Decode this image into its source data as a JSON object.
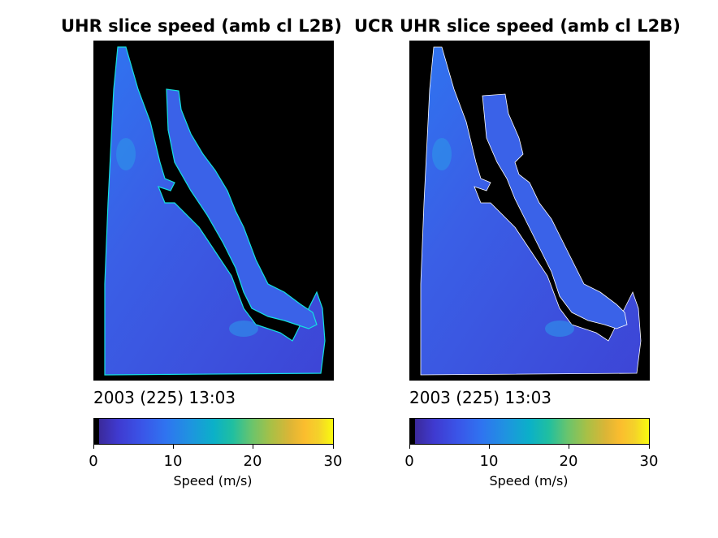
{
  "panels": [
    {
      "title": "UHR slice speed (amb cl L2B)",
      "timestamp": "2003 (225) 13:03"
    },
    {
      "title": "UCR UHR slice speed (amb cl L2B)",
      "timestamp": "2003 (225) 13:03"
    }
  ],
  "colorbar": {
    "ticks": [
      "0",
      "10",
      "20",
      "30"
    ],
    "label": "Speed (m/s)",
    "range": [
      0,
      30
    ],
    "colormap": "parula"
  },
  "colors": {
    "land": "#000000",
    "ocean_low": "#3d47d8",
    "ocean_mid": "#2f74f0",
    "coast_edge": "#13e0e0"
  }
}
